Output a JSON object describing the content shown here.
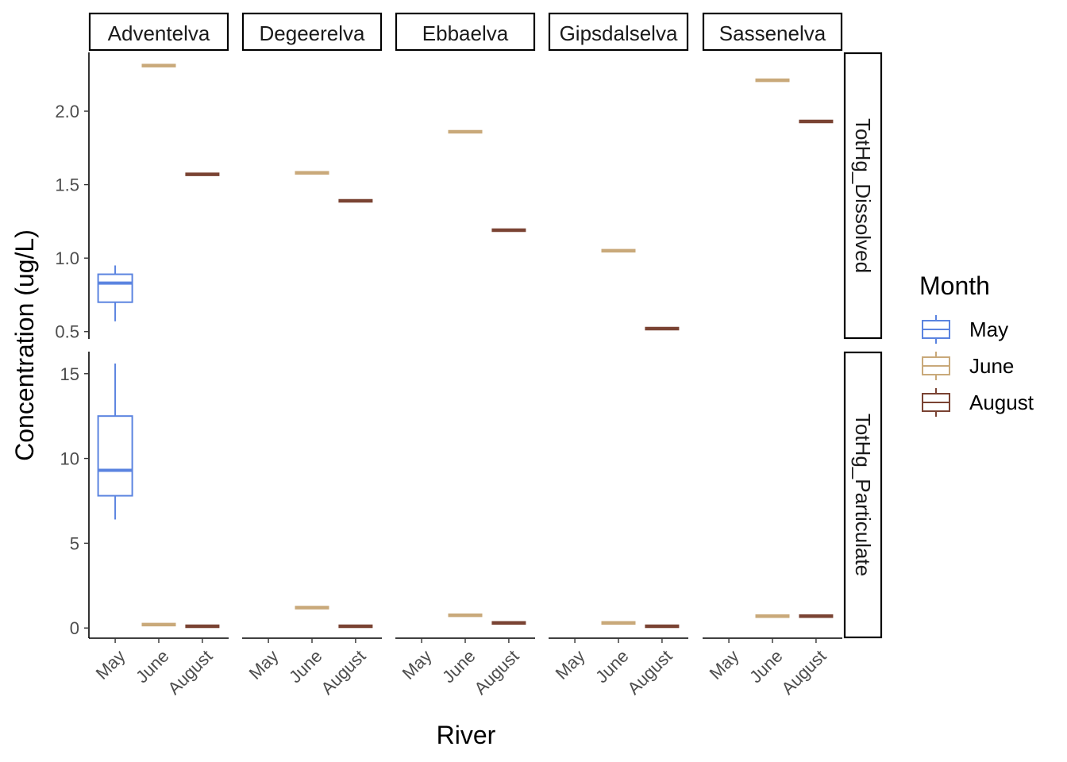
{
  "chart_data": {
    "type": "boxplot",
    "xlabel": "River",
    "ylabel": "Concentration (ug/L)",
    "categories": [
      "May",
      "June",
      "August"
    ],
    "facet_cols": [
      "Adventelva",
      "Degeerelva",
      "Ebbaelva",
      "Gipsdalselva",
      "Sassenelva"
    ],
    "facet_rows": [
      {
        "name": "TotHg_Dissolved",
        "ylim": [
          0.45,
          2.4
        ],
        "yticks": [
          0.5,
          1.0,
          1.5,
          2.0
        ],
        "ytick_labels": [
          "0.5",
          "1.0",
          "1.5",
          "2.0"
        ]
      },
      {
        "name": "TotHg_Particulate",
        "ylim": [
          -0.6,
          16.3
        ],
        "yticks": [
          0,
          5,
          10,
          15
        ],
        "ytick_labels": [
          "0",
          "5",
          "10",
          "15"
        ]
      }
    ],
    "legend": {
      "title": "Month",
      "position": "right",
      "entries": [
        "May",
        "June",
        "August"
      ]
    },
    "colors": {
      "May": "#5b84e0",
      "June": "#c9a97a",
      "August": "#7a4333"
    },
    "boxes": [
      {
        "facet_col": "Adventelva",
        "facet_row": "TotHg_Dissolved",
        "month": "May",
        "min": 0.57,
        "q1": 0.7,
        "median": 0.83,
        "q3": 0.89,
        "max": 0.95
      },
      {
        "facet_col": "Adventelva",
        "facet_row": "TotHg_Dissolved",
        "month": "June",
        "min": 2.31,
        "q1": 2.31,
        "median": 2.31,
        "q3": 2.31,
        "max": 2.31
      },
      {
        "facet_col": "Adventelva",
        "facet_row": "TotHg_Dissolved",
        "month": "August",
        "min": 1.57,
        "q1": 1.57,
        "median": 1.57,
        "q3": 1.57,
        "max": 1.57
      },
      {
        "facet_col": "Degeerelva",
        "facet_row": "TotHg_Dissolved",
        "month": "June",
        "min": 1.58,
        "q1": 1.58,
        "median": 1.58,
        "q3": 1.58,
        "max": 1.58
      },
      {
        "facet_col": "Degeerelva",
        "facet_row": "TotHg_Dissolved",
        "month": "August",
        "min": 1.39,
        "q1": 1.39,
        "median": 1.39,
        "q3": 1.39,
        "max": 1.39
      },
      {
        "facet_col": "Ebbaelva",
        "facet_row": "TotHg_Dissolved",
        "month": "June",
        "min": 1.86,
        "q1": 1.86,
        "median": 1.86,
        "q3": 1.86,
        "max": 1.86
      },
      {
        "facet_col": "Ebbaelva",
        "facet_row": "TotHg_Dissolved",
        "month": "August",
        "min": 1.19,
        "q1": 1.19,
        "median": 1.19,
        "q3": 1.19,
        "max": 1.19
      },
      {
        "facet_col": "Gipsdalselva",
        "facet_row": "TotHg_Dissolved",
        "month": "June",
        "min": 1.05,
        "q1": 1.05,
        "median": 1.05,
        "q3": 1.05,
        "max": 1.05
      },
      {
        "facet_col": "Gipsdalselva",
        "facet_row": "TotHg_Dissolved",
        "month": "August",
        "min": 0.52,
        "q1": 0.52,
        "median": 0.52,
        "q3": 0.52,
        "max": 0.52
      },
      {
        "facet_col": "Sassenelva",
        "facet_row": "TotHg_Dissolved",
        "month": "June",
        "min": 2.21,
        "q1": 2.21,
        "median": 2.21,
        "q3": 2.21,
        "max": 2.21
      },
      {
        "facet_col": "Sassenelva",
        "facet_row": "TotHg_Dissolved",
        "month": "August",
        "min": 1.93,
        "q1": 1.93,
        "median": 1.93,
        "q3": 1.93,
        "max": 1.93
      },
      {
        "facet_col": "Adventelva",
        "facet_row": "TotHg_Particulate",
        "month": "May",
        "min": 6.4,
        "q1": 7.8,
        "median": 9.3,
        "q3": 12.5,
        "max": 15.6
      },
      {
        "facet_col": "Adventelva",
        "facet_row": "TotHg_Particulate",
        "month": "June",
        "min": 0.2,
        "q1": 0.2,
        "median": 0.2,
        "q3": 0.2,
        "max": 0.2
      },
      {
        "facet_col": "Adventelva",
        "facet_row": "TotHg_Particulate",
        "month": "August",
        "min": 0.1,
        "q1": 0.1,
        "median": 0.1,
        "q3": 0.1,
        "max": 0.1
      },
      {
        "facet_col": "Degeerelva",
        "facet_row": "TotHg_Particulate",
        "month": "June",
        "min": 1.2,
        "q1": 1.2,
        "median": 1.2,
        "q3": 1.2,
        "max": 1.2
      },
      {
        "facet_col": "Degeerelva",
        "facet_row": "TotHg_Particulate",
        "month": "August",
        "min": 0.1,
        "q1": 0.1,
        "median": 0.1,
        "q3": 0.1,
        "max": 0.1
      },
      {
        "facet_col": "Ebbaelva",
        "facet_row": "TotHg_Particulate",
        "month": "June",
        "min": 0.75,
        "q1": 0.75,
        "median": 0.75,
        "q3": 0.75,
        "max": 0.75
      },
      {
        "facet_col": "Ebbaelva",
        "facet_row": "TotHg_Particulate",
        "month": "August",
        "min": 0.3,
        "q1": 0.3,
        "median": 0.3,
        "q3": 0.3,
        "max": 0.3
      },
      {
        "facet_col": "Gipsdalselva",
        "facet_row": "TotHg_Particulate",
        "month": "June",
        "min": 0.3,
        "q1": 0.3,
        "median": 0.3,
        "q3": 0.3,
        "max": 0.3
      },
      {
        "facet_col": "Gipsdalselva",
        "facet_row": "TotHg_Particulate",
        "month": "August",
        "min": 0.1,
        "q1": 0.1,
        "median": 0.1,
        "q3": 0.1,
        "max": 0.1
      },
      {
        "facet_col": "Sassenelva",
        "facet_row": "TotHg_Particulate",
        "month": "June",
        "min": 0.7,
        "q1": 0.7,
        "median": 0.7,
        "q3": 0.7,
        "max": 0.7
      },
      {
        "facet_col": "Sassenelva",
        "facet_row": "TotHg_Particulate",
        "month": "August",
        "min": 0.7,
        "q1": 0.7,
        "median": 0.7,
        "q3": 0.7,
        "max": 0.7
      }
    ]
  }
}
